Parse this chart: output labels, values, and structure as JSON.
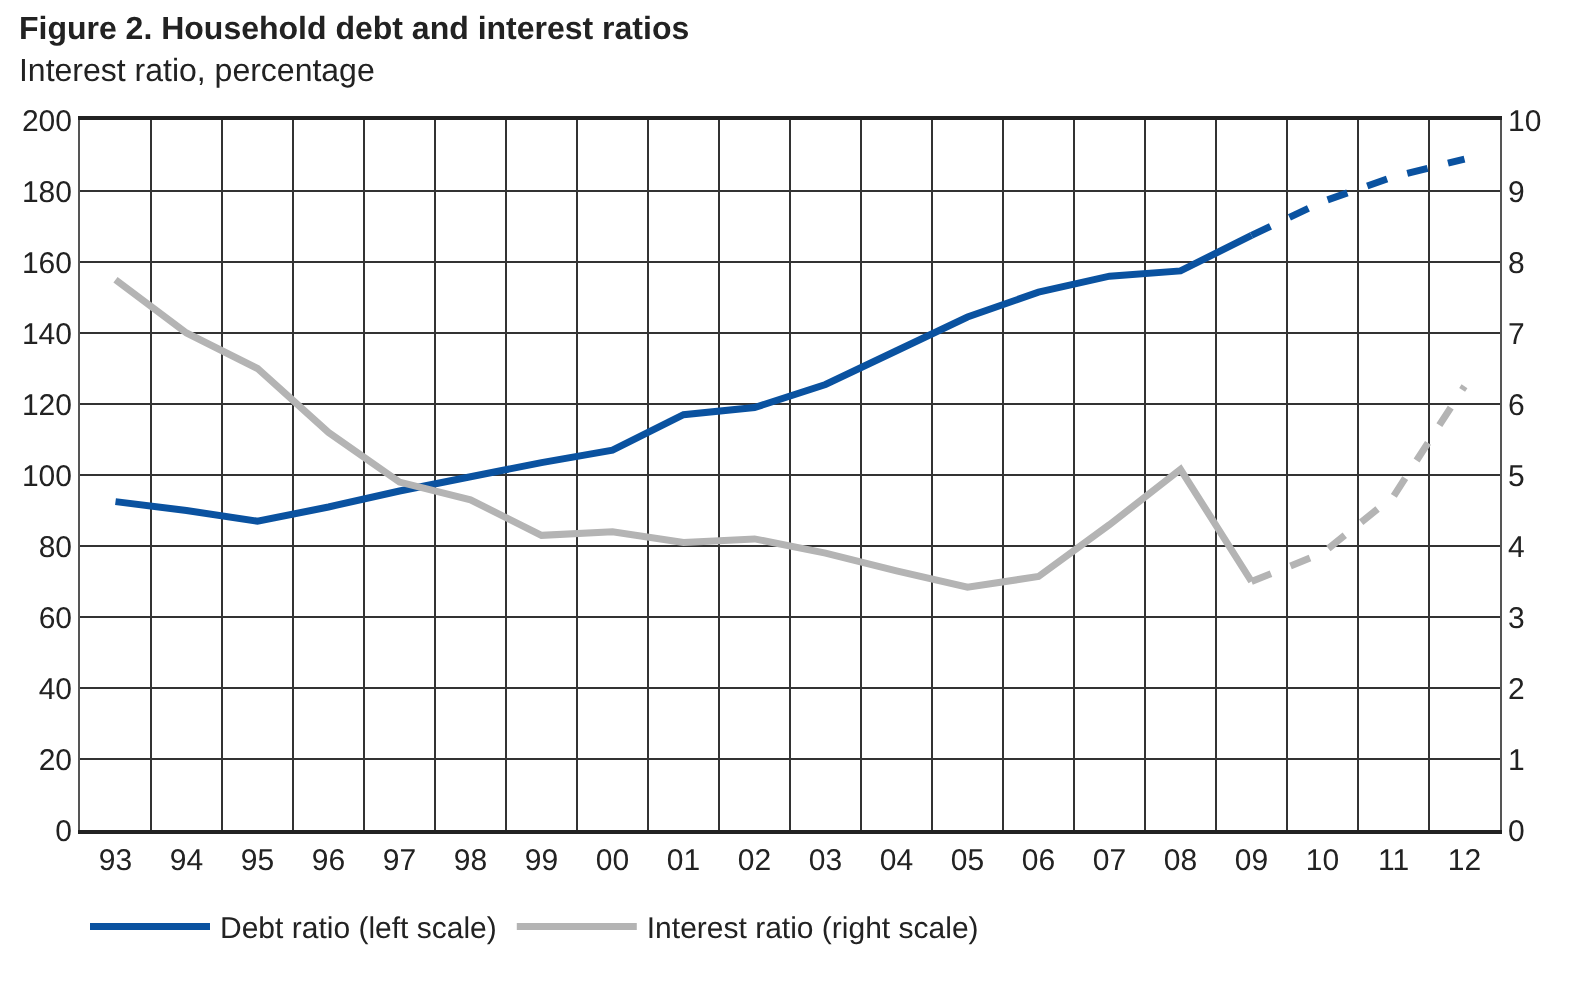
{
  "chart_data": {
    "type": "line",
    "title": "Figure 2. Household debt and interest ratios",
    "subtitle": "Interest ratio, percentage",
    "categories": [
      "93",
      "94",
      "95",
      "96",
      "97",
      "98",
      "99",
      "00",
      "01",
      "02",
      "03",
      "04",
      "05",
      "06",
      "07",
      "08",
      "09",
      "10",
      "11",
      "12"
    ],
    "series": [
      {
        "name": "Debt ratio (left scale)",
        "color": "#0a52a0",
        "line_style": "solid",
        "values": [
          92.5,
          90,
          87,
          91,
          95.5,
          99.5,
          103.5,
          107,
          117,
          119,
          125.5,
          135,
          144.5,
          151.5,
          156,
          157.5,
          167.5,
          null,
          null,
          null
        ]
      },
      {
        "color": "#0a52a0",
        "line_style": "dashed",
        "values": [
          null,
          null,
          null,
          null,
          null,
          null,
          null,
          null,
          null,
          null,
          null,
          null,
          null,
          null,
          null,
          null,
          167.5,
          177,
          184,
          189
        ]
      },
      {
        "name": "Interest ratio (right scale)",
        "color": "#b4b4b4",
        "axis": "y2",
        "line_style": "solid",
        "values": [
          7.75,
          7.0,
          6.5,
          5.6,
          4.9,
          4.65,
          4.15,
          4.2,
          4.05,
          4.1,
          3.9,
          3.65,
          3.42,
          3.57,
          4.3,
          5.08,
          3.5,
          null,
          null,
          null
        ]
      },
      {
        "color": "#b4b4b4",
        "axis": "y2",
        "line_style": "dashed",
        "values": [
          null,
          null,
          null,
          null,
          null,
          null,
          null,
          null,
          null,
          null,
          null,
          null,
          null,
          null,
          null,
          null,
          3.5,
          3.9,
          4.7,
          6.25
        ]
      }
    ],
    "ylim": [
      0,
      200
    ],
    "yticks": [
      0,
      20,
      40,
      60,
      80,
      100,
      120,
      140,
      160,
      180,
      200
    ],
    "y2lim": [
      0,
      10
    ],
    "y2ticks": [
      0,
      1,
      2,
      3,
      4,
      5,
      6,
      7,
      8,
      9,
      10
    ],
    "grid": true,
    "legend": "bottom",
    "marker": "none"
  }
}
